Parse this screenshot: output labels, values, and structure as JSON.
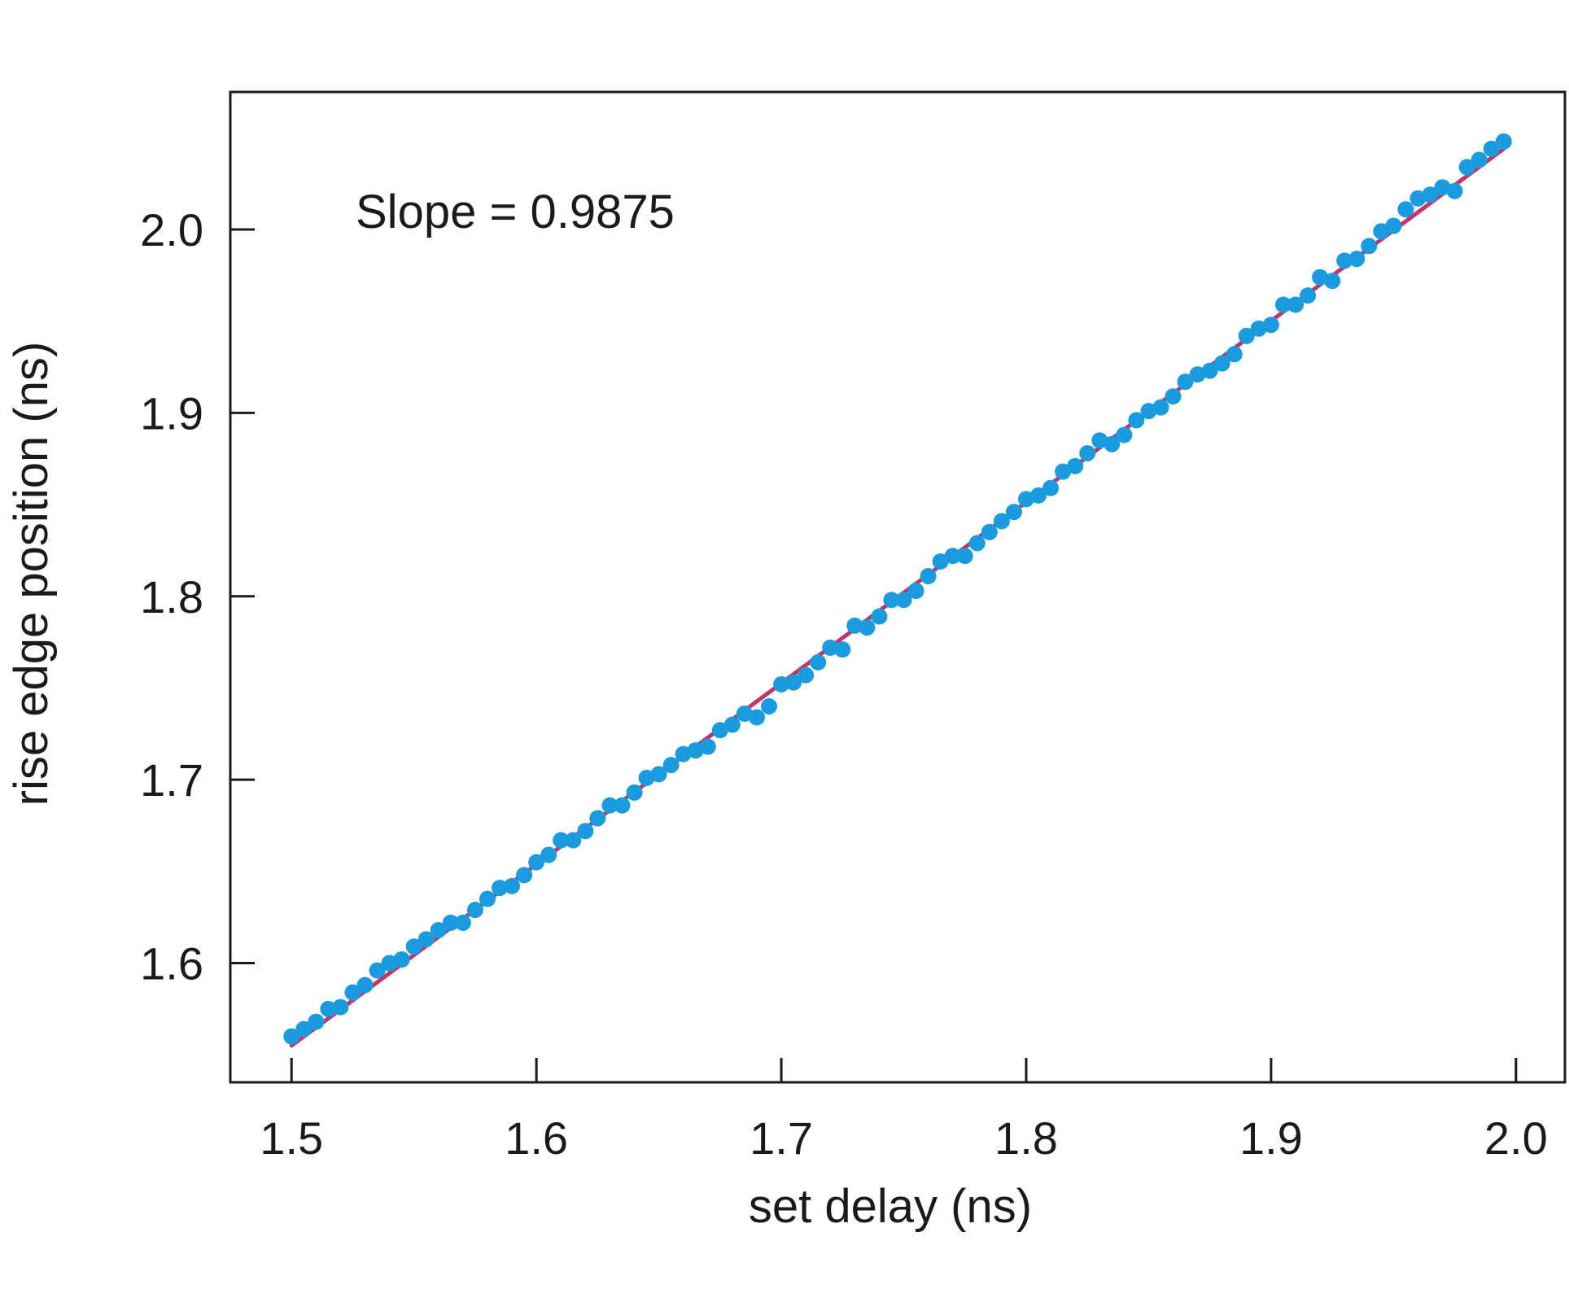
{
  "chart_data": {
    "type": "scatter",
    "xlabel": "set delay (ns)",
    "ylabel": "rise edge position (ns)",
    "annotation": "Slope = 0.9875",
    "xlim": [
      1.475,
      2.02
    ],
    "ylim": [
      1.535,
      2.075
    ],
    "x_ticks": [
      1.5,
      1.6,
      1.7,
      1.8,
      1.9,
      2.0
    ],
    "y_ticks": [
      1.6,
      1.7,
      1.8,
      1.9,
      2.0
    ],
    "x_tick_labels": [
      "1.5",
      "1.6",
      "1.7",
      "1.8",
      "1.9",
      "2.0"
    ],
    "y_tick_labels": [
      "1.6",
      "1.7",
      "1.8",
      "1.9",
      "2.0"
    ],
    "grid": false,
    "colors": {
      "points": "#1a9be0",
      "fit_line": "#c43469",
      "axes": "#1a1a1a"
    },
    "fit_line": {
      "x": [
        1.5,
        1.995
      ],
      "y": [
        1.555,
        2.044
      ]
    },
    "series": [
      {
        "x": [
          1.5,
          1.505,
          1.51,
          1.515,
          1.52,
          1.525,
          1.53,
          1.535,
          1.54,
          1.545,
          1.55,
          1.555,
          1.56,
          1.565,
          1.57,
          1.575,
          1.58,
          1.585,
          1.59,
          1.595,
          1.6,
          1.605,
          1.61,
          1.615,
          1.62,
          1.625,
          1.63,
          1.635,
          1.64,
          1.645,
          1.65,
          1.655,
          1.66,
          1.665,
          1.67,
          1.675,
          1.68,
          1.685,
          1.69,
          1.695,
          1.7,
          1.705,
          1.71,
          1.715,
          1.72,
          1.725,
          1.73,
          1.735,
          1.74,
          1.745,
          1.75,
          1.755,
          1.76,
          1.765,
          1.77,
          1.775,
          1.78,
          1.785,
          1.79,
          1.795,
          1.8,
          1.805,
          1.81,
          1.815,
          1.82,
          1.825,
          1.83,
          1.835,
          1.84,
          1.845,
          1.85,
          1.855,
          1.86,
          1.865,
          1.87,
          1.875,
          1.88,
          1.885,
          1.89,
          1.895,
          1.9,
          1.905,
          1.91,
          1.915,
          1.92,
          1.925,
          1.93,
          1.935,
          1.94,
          1.945,
          1.95,
          1.955,
          1.96,
          1.965,
          1.97,
          1.975,
          1.98,
          1.985,
          1.99,
          1.995
        ],
        "y": [
          1.56,
          1.564,
          1.568,
          1.575,
          1.576,
          1.584,
          1.588,
          1.596,
          1.6,
          1.602,
          1.609,
          1.613,
          1.618,
          1.622,
          1.622,
          1.629,
          1.635,
          1.641,
          1.642,
          1.648,
          1.655,
          1.659,
          1.667,
          1.667,
          1.672,
          1.679,
          1.686,
          1.686,
          1.693,
          1.701,
          1.703,
          1.708,
          1.714,
          1.716,
          1.718,
          1.727,
          1.73,
          1.736,
          1.734,
          1.74,
          1.752,
          1.753,
          1.757,
          1.764,
          1.772,
          1.771,
          1.784,
          1.783,
          1.789,
          1.798,
          1.798,
          1.803,
          1.811,
          1.819,
          1.822,
          1.822,
          1.829,
          1.835,
          1.841,
          1.846,
          1.853,
          1.855,
          1.859,
          1.868,
          1.871,
          1.878,
          1.885,
          1.883,
          1.888,
          1.896,
          1.901,
          1.903,
          1.909,
          1.917,
          1.921,
          1.923,
          1.927,
          1.932,
          1.942,
          1.946,
          1.948,
          1.959,
          1.959,
          1.964,
          1.974,
          1.972,
          1.983,
          1.984,
          1.991,
          1.999,
          2.002,
          2.011,
          2.017,
          2.019,
          2.023,
          2.021,
          2.034,
          2.038,
          2.044,
          2.048
        ]
      }
    ]
  }
}
